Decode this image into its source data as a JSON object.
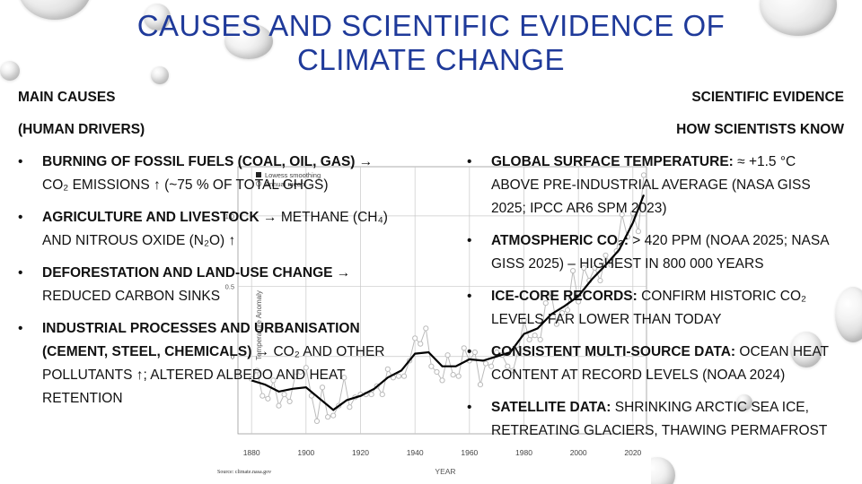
{
  "slide": {
    "title_line1": "Causes and Scientific Evidence of",
    "title_line2": "Climate Change"
  },
  "left": {
    "heading": "Main Causes",
    "subheading": "(Human Drivers)",
    "items": [
      {
        "bold": "Burning of fossil fuels (coal, oil, gas)",
        "text": " → CO₂ emissions ↑ (~75 % of total GHGs)"
      },
      {
        "bold": "Agriculture and livestock",
        "text": " → methane (CH₄) and nitrous oxide (N₂O) ↑"
      },
      {
        "bold": "Deforestation and land-use change",
        "text": " → reduced carbon sinks"
      },
      {
        "bold": "Industrial processes and urbanisation (cement, steel, chemicals)",
        "text": " → CO₂ and other pollutants ↑; altered albedo and heat retention"
      }
    ]
  },
  "right": {
    "heading": "Scientific Evidence",
    "subheading": "How Scientists Know",
    "items": [
      {
        "bold": "Global surface temperature:",
        "text": " ≈ +1.5 °C above pre-industrial average (NASA GISS 2025; IPCC AR6 SPM 2023)"
      },
      {
        "bold": "Atmospheric CO₂:",
        "text": " > 420 ppm (NOAA 2025; NASA GISS 2025) – highest in 800 000 years"
      },
      {
        "bold": "Ice-core records:",
        "text": " confirm historic CO₂ levels far lower than today"
      },
      {
        "bold": "Consistent multi-source data:",
        "text": " ocean heat content at record levels (NOAA 2024)"
      },
      {
        "bold": "Satellite data:",
        "text": " shrinking Arctic sea ice, retreating glaciers, thawing permafrost"
      }
    ]
  },
  "chart_data": {
    "type": "line",
    "xlabel": "YEAR",
    "ylabel": "Temperature Anomaly",
    "source": "Source: climate.nasa.gov",
    "legend": [
      "Lowess smoothing",
      "Annual mean"
    ],
    "x_ticks": [
      1880,
      1900,
      1920,
      1940,
      1960,
      1980,
      2000,
      2020
    ],
    "y_ticks": [
      0,
      0.5,
      1.0
    ],
    "y_tick_labels": [
      "0",
      "0.5",
      "1.0"
    ],
    "xlim": [
      1875,
      2025
    ],
    "ylim": [
      -0.55,
      1.35
    ],
    "grid": true,
    "series": [
      {
        "name": "Annual mean",
        "color": "#bbbbbb",
        "x": [
          1880,
          1882,
          1884,
          1886,
          1888,
          1890,
          1892,
          1894,
          1896,
          1898,
          1900,
          1902,
          1904,
          1906,
          1908,
          1910,
          1912,
          1914,
          1916,
          1918,
          1920,
          1922,
          1924,
          1926,
          1928,
          1930,
          1932,
          1934,
          1936,
          1938,
          1940,
          1942,
          1944,
          1946,
          1948,
          1950,
          1952,
          1954,
          1956,
          1958,
          1960,
          1962,
          1964,
          1966,
          1968,
          1970,
          1972,
          1974,
          1976,
          1978,
          1980,
          1982,
          1984,
          1986,
          1988,
          1990,
          1992,
          1994,
          1996,
          1998,
          2000,
          2002,
          2004,
          2006,
          2008,
          2010,
          2012,
          2014,
          2016,
          2018,
          2020,
          2022,
          2024
        ],
        "values": [
          -0.16,
          -0.1,
          -0.28,
          -0.3,
          -0.17,
          -0.35,
          -0.27,
          -0.32,
          -0.14,
          -0.11,
          -0.08,
          -0.28,
          -0.46,
          -0.22,
          -0.43,
          -0.42,
          -0.35,
          -0.15,
          -0.36,
          -0.29,
          -0.27,
          -0.27,
          -0.27,
          -0.21,
          -0.27,
          -0.09,
          -0.15,
          -0.14,
          -0.14,
          -0.03,
          0.13,
          0.09,
          0.2,
          -0.07,
          -0.11,
          -0.17,
          0.01,
          -0.13,
          -0.14,
          0.06,
          -0.03,
          0.03,
          -0.2,
          -0.05,
          -0.07,
          0.03,
          0.01,
          -0.07,
          -0.1,
          0.05,
          0.26,
          0.12,
          0.15,
          0.12,
          0.38,
          0.45,
          0.23,
          0.31,
          0.33,
          0.61,
          0.39,
          0.63,
          0.54,
          0.63,
          0.54,
          0.72,
          0.65,
          0.75,
          1.01,
          0.85,
          1.02,
          0.89,
          1.29
        ]
      },
      {
        "name": "Lowess smoothing",
        "color": "#000000",
        "x": [
          1880,
          1885,
          1890,
          1895,
          1900,
          1905,
          1910,
          1915,
          1920,
          1925,
          1930,
          1935,
          1940,
          1945,
          1950,
          1955,
          1960,
          1965,
          1970,
          1975,
          1980,
          1985,
          1990,
          1995,
          2000,
          2005,
          2010,
          2015,
          2020,
          2024
        ],
        "values": [
          -0.17,
          -0.2,
          -0.25,
          -0.23,
          -0.22,
          -0.3,
          -0.38,
          -0.31,
          -0.28,
          -0.23,
          -0.15,
          -0.1,
          0.02,
          0.03,
          -0.07,
          -0.07,
          -0.02,
          -0.03,
          0.0,
          0.03,
          0.16,
          0.2,
          0.3,
          0.36,
          0.43,
          0.55,
          0.65,
          0.76,
          0.95,
          1.15
        ]
      }
    ]
  }
}
